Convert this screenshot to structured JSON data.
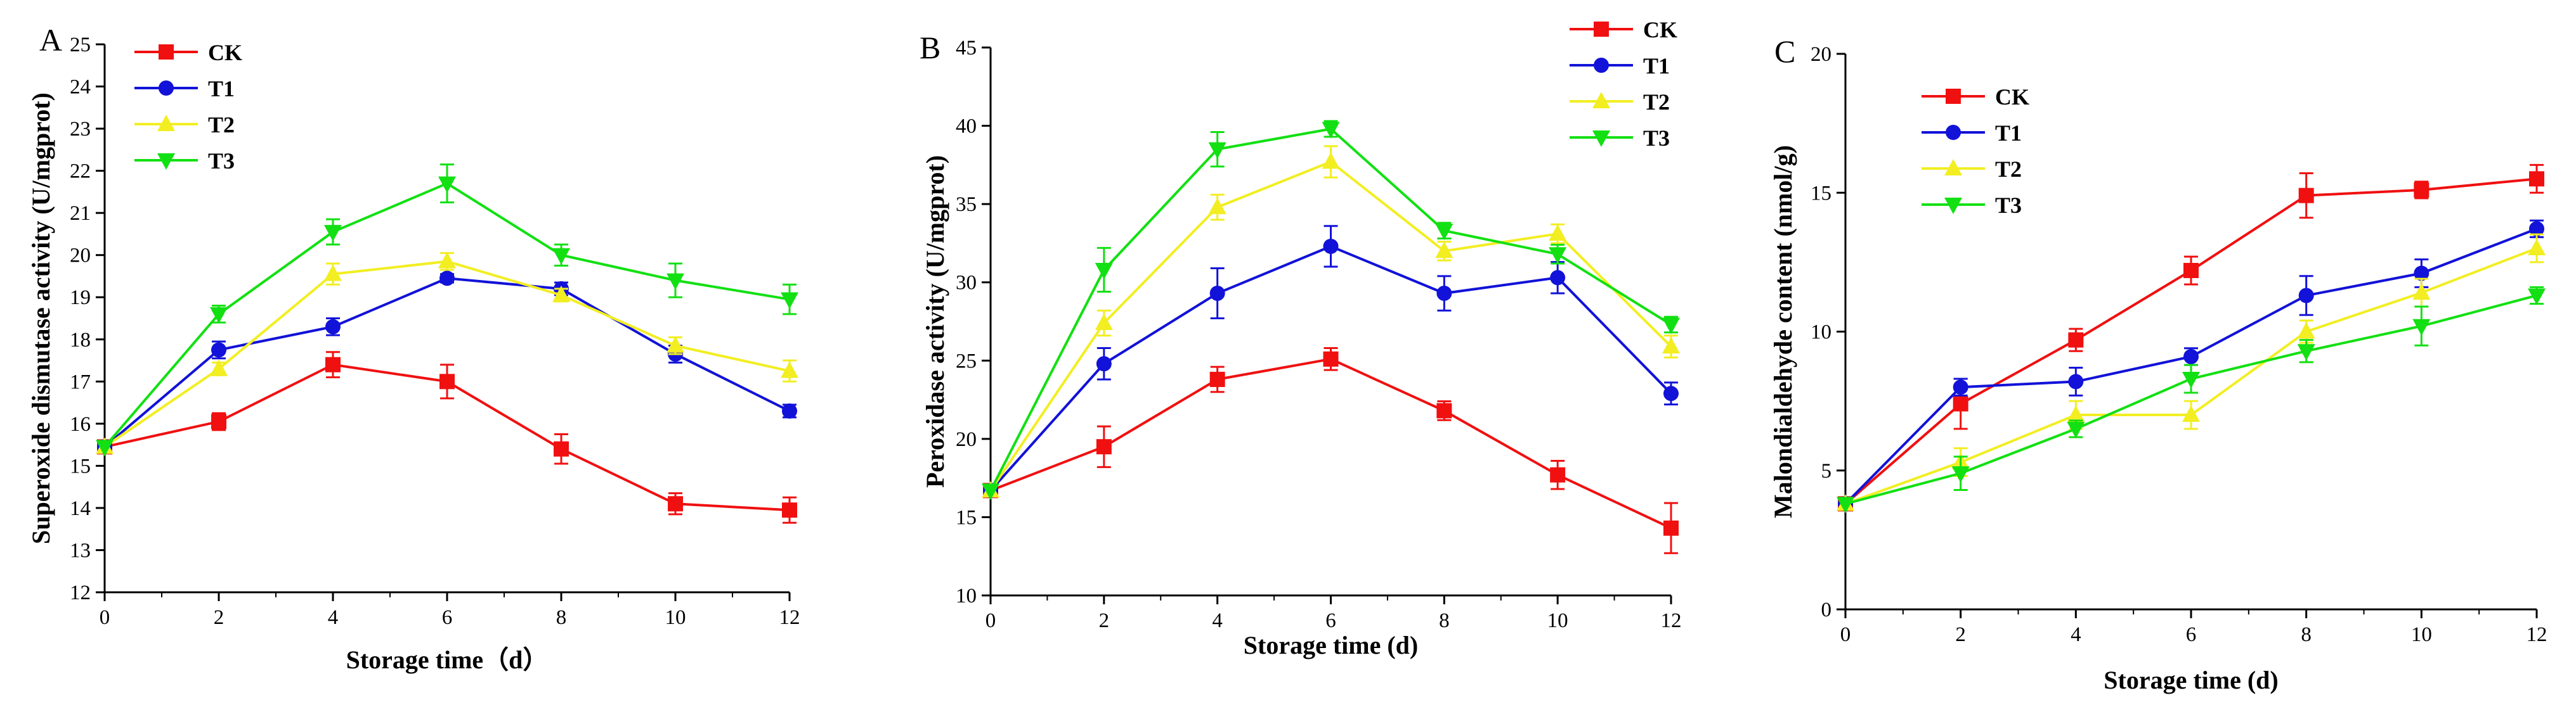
{
  "colors": {
    "CK": "#f01010",
    "T1": "#1212d8",
    "T2": "#f2ee22",
    "T3": "#12e012"
  },
  "markers": {
    "CK": "square",
    "T1": "circle",
    "T2": "triangle-up",
    "T3": "triangle-down"
  },
  "chart_data": [
    {
      "type": "line",
      "panel": "A",
      "xlabel": "Storage time（d）",
      "ylabel": "Superoxide dismutase activity (U/mgprot)",
      "x": [
        0,
        2,
        4,
        6,
        8,
        10,
        12
      ],
      "xlim": [
        0,
        12
      ],
      "ylim": [
        12,
        25
      ],
      "xticks": [
        "0",
        "2",
        "4",
        "6",
        "8",
        "10",
        "12"
      ],
      "yticks": [
        "12",
        "13",
        "14",
        "15",
        "16",
        "17",
        "18",
        "19",
        "20",
        "21",
        "22",
        "23",
        "24",
        "25"
      ],
      "legend_position": "top-left",
      "series": [
        {
          "name": "CK",
          "values": [
            15.45,
            16.05,
            17.4,
            17.0,
            15.4,
            14.1,
            13.95
          ],
          "errors": [
            0.0,
            0.2,
            0.3,
            0.4,
            0.35,
            0.25,
            0.3
          ]
        },
        {
          "name": "T1",
          "values": [
            15.45,
            17.75,
            18.3,
            19.45,
            19.2,
            17.65,
            16.3
          ],
          "errors": [
            0.0,
            0.2,
            0.2,
            0.1,
            0.15,
            0.2,
            0.15
          ]
        },
        {
          "name": "T2",
          "values": [
            15.45,
            17.3,
            19.55,
            19.85,
            19.05,
            17.85,
            17.25
          ],
          "errors": [
            0.0,
            0.15,
            0.25,
            0.2,
            0.15,
            0.2,
            0.25
          ]
        },
        {
          "name": "T3",
          "values": [
            15.45,
            18.6,
            20.55,
            21.7,
            20.0,
            19.4,
            18.95
          ],
          "errors": [
            0.0,
            0.2,
            0.3,
            0.45,
            0.25,
            0.4,
            0.35
          ]
        }
      ]
    },
    {
      "type": "line",
      "panel": "B",
      "xlabel": "Storage time (d)",
      "ylabel": "Peroxidase activity (U/mgprot)",
      "x": [
        0,
        2,
        4,
        6,
        8,
        10,
        12
      ],
      "xlim": [
        0,
        12
      ],
      "ylim": [
        10,
        45
      ],
      "xticks": [
        "0",
        "2",
        "4",
        "6",
        "8",
        "10",
        "12"
      ],
      "yticks": [
        "10",
        "15",
        "20",
        "25",
        "30",
        "35",
        "40",
        "45"
      ],
      "legend_position": "top-right",
      "series": [
        {
          "name": "CK",
          "values": [
            16.7,
            19.5,
            23.8,
            25.1,
            21.8,
            17.7,
            14.3
          ],
          "errors": [
            0.0,
            1.3,
            0.8,
            0.7,
            0.6,
            0.9,
            1.6
          ]
        },
        {
          "name": "T1",
          "values": [
            16.7,
            24.8,
            29.3,
            32.3,
            29.3,
            30.3,
            22.9
          ],
          "errors": [
            0.0,
            1.0,
            1.6,
            1.3,
            1.1,
            1.0,
            0.7
          ]
        },
        {
          "name": "T2",
          "values": [
            16.7,
            27.4,
            34.8,
            37.7,
            32.0,
            33.1,
            25.9
          ],
          "errors": [
            0.0,
            0.8,
            0.8,
            1.0,
            0.6,
            0.6,
            0.7
          ]
        },
        {
          "name": "T3",
          "values": [
            16.7,
            30.8,
            38.5,
            39.8,
            33.3,
            31.8,
            27.3
          ],
          "errors": [
            0.0,
            1.4,
            1.1,
            0.5,
            0.5,
            0.6,
            0.5
          ]
        }
      ]
    },
    {
      "type": "line",
      "panel": "C",
      "xlabel": "Storage time  (d)",
      "ylabel": "Malondialdehyde content (nmol/g)",
      "x": [
        0,
        2,
        4,
        6,
        8,
        10,
        12
      ],
      "xlim": [
        0,
        12
      ],
      "ylim": [
        0,
        20
      ],
      "xticks": [
        "0",
        "2",
        "4",
        "6",
        "8",
        "10",
        "12"
      ],
      "yticks": [
        "0",
        "5",
        "10",
        "15",
        "20"
      ],
      "legend_position": "top-left",
      "series": [
        {
          "name": "CK",
          "values": [
            3.8,
            7.4,
            9.7,
            12.2,
            14.9,
            15.1,
            15.5
          ],
          "errors": [
            0.0,
            0.9,
            0.4,
            0.5,
            0.8,
            0.3,
            0.5
          ]
        },
        {
          "name": "T1",
          "values": [
            3.8,
            8.0,
            8.2,
            9.1,
            11.3,
            12.1,
            13.7
          ],
          "errors": [
            0.0,
            0.3,
            0.5,
            0.3,
            0.7,
            0.5,
            0.3
          ]
        },
        {
          "name": "T2",
          "values": [
            3.8,
            5.3,
            7.0,
            7.0,
            10.0,
            11.4,
            13.0
          ],
          "errors": [
            0.0,
            0.5,
            0.5,
            0.5,
            0.4,
            0.5,
            0.5
          ]
        },
        {
          "name": "T3",
          "values": [
            3.8,
            4.9,
            6.5,
            8.3,
            9.3,
            10.2,
            11.3
          ],
          "errors": [
            0.0,
            0.6,
            0.3,
            0.5,
            0.4,
            0.7,
            0.3
          ]
        }
      ]
    }
  ]
}
